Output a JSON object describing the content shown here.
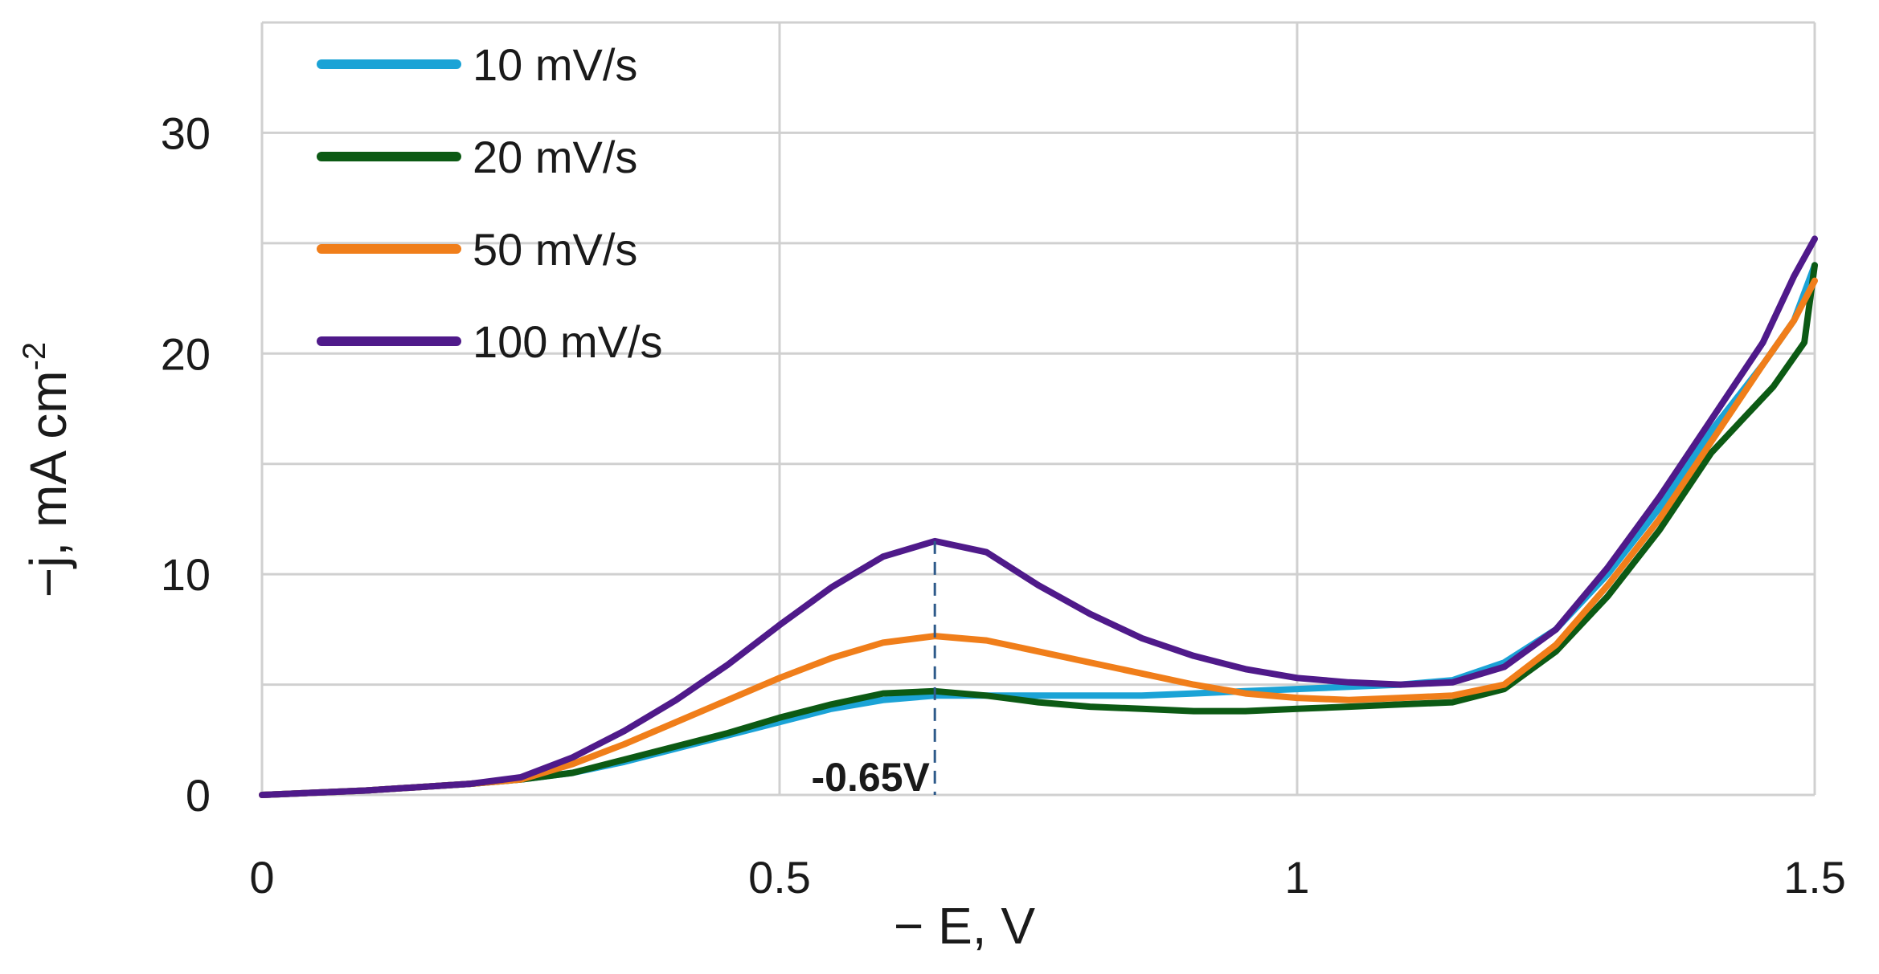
{
  "chart_data": {
    "type": "line",
    "title": "",
    "xlabel": "− E, V",
    "ylabel": "−j, mA cm",
    "ylabel_superscript": "-2",
    "xlim": [
      0,
      1.5
    ],
    "ylim": [
      0,
      35
    ],
    "xticks": [
      0,
      0.5,
      1,
      1.5
    ],
    "xtick_labels": [
      "0",
      "0.5",
      "1",
      "1.5"
    ],
    "yticks": [
      0,
      10,
      20,
      30
    ],
    "ytick_labels": [
      "0",
      "10",
      "20",
      "30"
    ],
    "y_gridlines": [
      0,
      5,
      10,
      15,
      20,
      25,
      30,
      35
    ],
    "x_gridlines": [
      0,
      0.5,
      1,
      1.5
    ],
    "grid": true,
    "legend_position": "top-left",
    "annotation": {
      "label": "-0.65V",
      "x": 0.65
    },
    "series": [
      {
        "name": "10 mV/s",
        "color": "#1ba3d6",
        "points": [
          [
            0,
            0
          ],
          [
            0.1,
            0.2
          ],
          [
            0.2,
            0.5
          ],
          [
            0.25,
            0.7
          ],
          [
            0.3,
            1.0
          ],
          [
            0.35,
            1.5
          ],
          [
            0.4,
            2.1
          ],
          [
            0.45,
            2.7
          ],
          [
            0.5,
            3.3
          ],
          [
            0.55,
            3.9
          ],
          [
            0.6,
            4.3
          ],
          [
            0.65,
            4.5
          ],
          [
            0.7,
            4.5
          ],
          [
            0.75,
            4.5
          ],
          [
            0.8,
            4.5
          ],
          [
            0.85,
            4.5
          ],
          [
            0.9,
            4.6
          ],
          [
            0.95,
            4.7
          ],
          [
            1.0,
            4.8
          ],
          [
            1.05,
            4.9
          ],
          [
            1.1,
            5.0
          ],
          [
            1.15,
            5.2
          ],
          [
            1.2,
            6.0
          ],
          [
            1.25,
            7.5
          ],
          [
            1.3,
            10.0
          ],
          [
            1.35,
            13.0
          ],
          [
            1.4,
            16.5
          ],
          [
            1.45,
            19.5
          ],
          [
            1.48,
            21.5
          ],
          [
            1.5,
            24.0
          ]
        ]
      },
      {
        "name": "20 mV/s",
        "color": "#0c5a14",
        "points": [
          [
            0,
            0
          ],
          [
            0.1,
            0.2
          ],
          [
            0.2,
            0.5
          ],
          [
            0.25,
            0.7
          ],
          [
            0.3,
            1.0
          ],
          [
            0.35,
            1.6
          ],
          [
            0.4,
            2.2
          ],
          [
            0.45,
            2.8
          ],
          [
            0.5,
            3.5
          ],
          [
            0.55,
            4.1
          ],
          [
            0.6,
            4.6
          ],
          [
            0.65,
            4.7
          ],
          [
            0.7,
            4.5
          ],
          [
            0.75,
            4.2
          ],
          [
            0.8,
            4.0
          ],
          [
            0.85,
            3.9
          ],
          [
            0.9,
            3.8
          ],
          [
            0.95,
            3.8
          ],
          [
            1.0,
            3.9
          ],
          [
            1.05,
            4.0
          ],
          [
            1.1,
            4.1
          ],
          [
            1.15,
            4.2
          ],
          [
            1.2,
            4.8
          ],
          [
            1.25,
            6.5
          ],
          [
            1.3,
            9.0
          ],
          [
            1.35,
            12.0
          ],
          [
            1.4,
            15.5
          ],
          [
            1.43,
            17.0
          ],
          [
            1.46,
            18.5
          ],
          [
            1.49,
            20.5
          ],
          [
            1.5,
            24.0
          ]
        ]
      },
      {
        "name": "50 mV/s",
        "color": "#f07e1a",
        "points": [
          [
            0,
            0
          ],
          [
            0.1,
            0.2
          ],
          [
            0.2,
            0.5
          ],
          [
            0.25,
            0.7
          ],
          [
            0.3,
            1.4
          ],
          [
            0.35,
            2.3
          ],
          [
            0.4,
            3.3
          ],
          [
            0.45,
            4.3
          ],
          [
            0.5,
            5.3
          ],
          [
            0.55,
            6.2
          ],
          [
            0.6,
            6.9
          ],
          [
            0.65,
            7.2
          ],
          [
            0.7,
            7.0
          ],
          [
            0.75,
            6.5
          ],
          [
            0.8,
            6.0
          ],
          [
            0.85,
            5.5
          ],
          [
            0.9,
            5.0
          ],
          [
            0.95,
            4.6
          ],
          [
            1.0,
            4.4
          ],
          [
            1.05,
            4.3
          ],
          [
            1.1,
            4.4
          ],
          [
            1.15,
            4.5
          ],
          [
            1.2,
            5.0
          ],
          [
            1.25,
            6.8
          ],
          [
            1.3,
            9.5
          ],
          [
            1.35,
            12.5
          ],
          [
            1.4,
            16.0
          ],
          [
            1.45,
            19.5
          ],
          [
            1.48,
            21.5
          ],
          [
            1.5,
            23.3
          ]
        ]
      },
      {
        "name": "100 mV/s",
        "color": "#4f1a8a",
        "points": [
          [
            0,
            0
          ],
          [
            0.1,
            0.2
          ],
          [
            0.2,
            0.5
          ],
          [
            0.25,
            0.8
          ],
          [
            0.3,
            1.7
          ],
          [
            0.35,
            2.9
          ],
          [
            0.4,
            4.3
          ],
          [
            0.45,
            5.9
          ],
          [
            0.5,
            7.7
          ],
          [
            0.55,
            9.4
          ],
          [
            0.6,
            10.8
          ],
          [
            0.65,
            11.5
          ],
          [
            0.7,
            11.0
          ],
          [
            0.75,
            9.5
          ],
          [
            0.8,
            8.2
          ],
          [
            0.85,
            7.1
          ],
          [
            0.9,
            6.3
          ],
          [
            0.95,
            5.7
          ],
          [
            1.0,
            5.3
          ],
          [
            1.05,
            5.1
          ],
          [
            1.1,
            5.0
          ],
          [
            1.15,
            5.1
          ],
          [
            1.2,
            5.8
          ],
          [
            1.25,
            7.5
          ],
          [
            1.3,
            10.3
          ],
          [
            1.35,
            13.5
          ],
          [
            1.4,
            17.0
          ],
          [
            1.45,
            20.5
          ],
          [
            1.48,
            23.5
          ],
          [
            1.5,
            25.2
          ]
        ]
      }
    ]
  }
}
